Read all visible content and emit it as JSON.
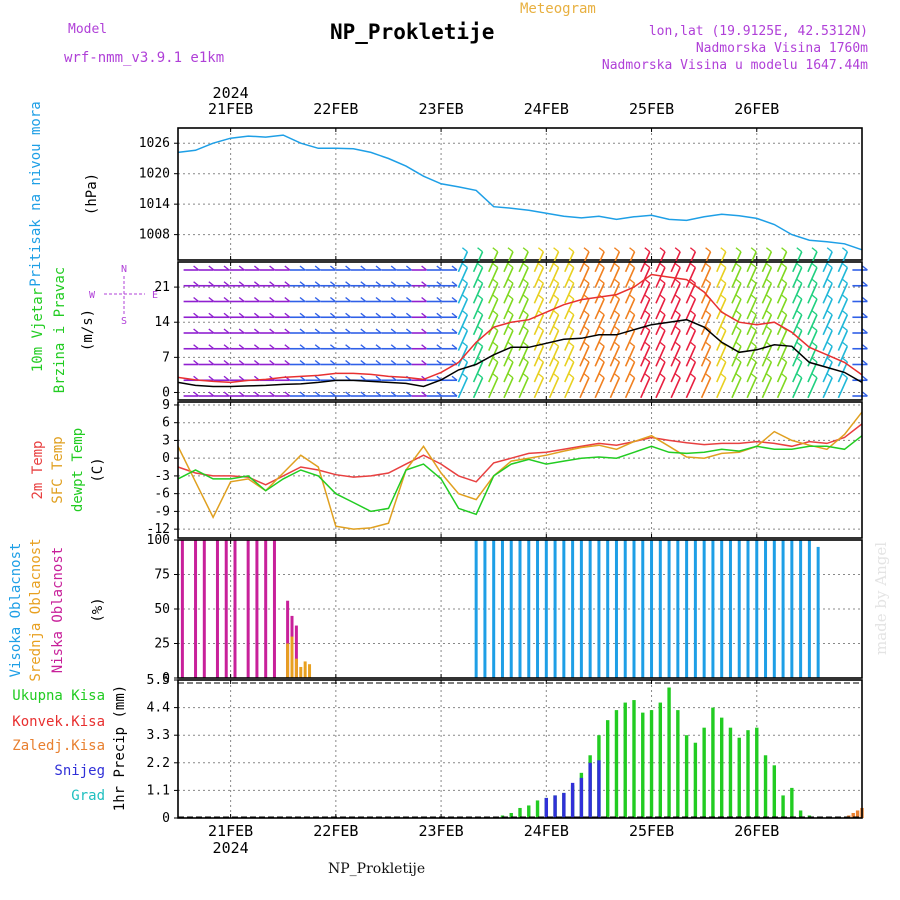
{
  "header": {
    "model_label": "Model",
    "model_name": "wrf-nmm_v3.9.1 e1km",
    "title": "NP_Prokletije",
    "meteogram": "Meteogram",
    "coords": "lon,lat (19.9125E, 42.5312N)",
    "elevation": "Nadmorska Visina 1760m",
    "model_elevation": "Nadmorska Visina u modelu 1647.44m"
  },
  "footer": {
    "station": "NP_Prokletije"
  },
  "watermark": "made by Angel",
  "colors": {
    "pressure": "#1e9fe6",
    "wind_speed": "#000000",
    "gust": "#e83030",
    "temp_2m": "#e84040",
    "temp_sfc": "#e0a020",
    "dewpoint": "#22cc22",
    "cloud_high": "#1e9fe6",
    "cloud_mid": "#e8a020",
    "cloud_low": "#c8209a",
    "precip_total": "#22cc22",
    "precip_conv": "#e83030",
    "precip_frozen": "#e88030",
    "precip_snow": "#3030d8",
    "precip_hail": "#20c0c0",
    "label_purple": "#b040d8"
  },
  "chart_data": {
    "type": "line",
    "x_axis": {
      "ticks": [
        "21FEB",
        "22FEB",
        "23FEB",
        "24FEB",
        "25FEB",
        "26FEB"
      ],
      "year": "2024",
      "range_hours": [
        -12,
        144
      ]
    },
    "panels": [
      {
        "name": "pressure",
        "ylabel_lines": [
          "Pritisak na nivou mora"
        ],
        "unit": "(hPa)",
        "ylim": [
          1003,
          1029
        ],
        "yticks": [
          1008,
          1014,
          1020,
          1026
        ],
        "series": [
          {
            "color_key": "pressure",
            "x": [
              -12,
              -8,
              -4,
              0,
              4,
              8,
              12,
              16,
              20,
              24,
              28,
              32,
              36,
              40,
              44,
              48,
              52,
              56,
              60,
              64,
              68,
              72,
              76,
              80,
              84,
              88,
              92,
              96,
              100,
              104,
              108,
              112,
              116,
              120,
              124,
              128,
              132,
              136,
              140,
              144
            ],
            "y": [
              1024.2,
              1024.6,
              1026.0,
              1027.0,
              1027.4,
              1027.2,
              1027.6,
              1026.0,
              1025.0,
              1025.0,
              1024.9,
              1024.2,
              1023.0,
              1021.5,
              1019.5,
              1018.0,
              1017.4,
              1016.7,
              1013.5,
              1013.2,
              1012.8,
              1012.2,
              1011.6,
              1011.3,
              1011.6,
              1011.0,
              1011.5,
              1011.8,
              1011.0,
              1010.8,
              1011.5,
              1012.0,
              1011.7,
              1011.2,
              1010.0,
              1008.0,
              1006.9,
              1006.6,
              1006.2,
              1005.0
            ]
          }
        ]
      },
      {
        "name": "wind",
        "ylabel_lines": [
          "10m Vjetar",
          "Brzina i Pravac"
        ],
        "unit": "(m/s)",
        "ylim": [
          -1.5,
          26
        ],
        "yticks": [
          0,
          7,
          14,
          21
        ],
        "compass": [
          "N",
          "W",
          "E",
          "S"
        ],
        "series": [
          {
            "color_key": "wind_speed",
            "x": [
              -12,
              -8,
              -4,
              0,
              4,
              8,
              12,
              16,
              20,
              24,
              28,
              32,
              36,
              40,
              44,
              48,
              52,
              56,
              60,
              64,
              68,
              72,
              76,
              80,
              84,
              88,
              92,
              96,
              100,
              104,
              108,
              112,
              116,
              120,
              124,
              128,
              132,
              136,
              140,
              144
            ],
            "y": [
              2.0,
              1.4,
              1.2,
              1.2,
              1.3,
              1.4,
              1.6,
              1.7,
              2.0,
              2.4,
              2.4,
              2.2,
              2.0,
              1.8,
              1.2,
              2.5,
              4.5,
              5.6,
              7.5,
              9.0,
              9.0,
              9.8,
              10.6,
              10.8,
              11.5,
              11.5,
              12.5,
              13.5,
              14.0,
              14.5,
              13.0,
              10.0,
              8.0,
              8.5,
              9.5,
              9.2,
              6.0,
              5.0,
              4.0,
              2.0
            ]
          },
          {
            "color_key": "gust",
            "x": [
              -12,
              -8,
              -4,
              0,
              4,
              8,
              12,
              16,
              20,
              24,
              28,
              32,
              36,
              40,
              44,
              48,
              52,
              56,
              60,
              64,
              68,
              72,
              76,
              80,
              84,
              88,
              92,
              96,
              100,
              104,
              108,
              112,
              116,
              120,
              124,
              128,
              132,
              136,
              140,
              144
            ],
            "y": [
              3.0,
              2.5,
              2.2,
              2.0,
              2.4,
              2.6,
              3.0,
              3.2,
              3.4,
              3.8,
              3.8,
              3.6,
              3.2,
              3.0,
              2.6,
              4.0,
              6.0,
              10.0,
              13.0,
              14.0,
              14.5,
              16.0,
              17.5,
              18.5,
              19.0,
              19.5,
              21.0,
              23.5,
              23.0,
              22.5,
              20.0,
              16.0,
              14.0,
              13.5,
              14.0,
              12.0,
              9.0,
              7.5,
              6.0,
              3.5
            ]
          }
        ]
      },
      {
        "name": "temperature",
        "ylabel_lines": [
          "2m Temp",
          "SFC Temp",
          "dewpt Temp"
        ],
        "unit": "(C)",
        "ylim": [
          -13.5,
          9.5
        ],
        "yticks": [
          -12,
          -9,
          -6,
          -3,
          0,
          3,
          6,
          9
        ],
        "series": [
          {
            "color_key": "temp_2m",
            "x": [
              -12,
              -8,
              -4,
              0,
              4,
              8,
              12,
              16,
              20,
              24,
              28,
              32,
              36,
              40,
              44,
              48,
              52,
              56,
              60,
              64,
              68,
              72,
              76,
              80,
              84,
              88,
              92,
              96,
              100,
              104,
              108,
              112,
              116,
              120,
              124,
              128,
              132,
              136,
              140,
              144
            ],
            "y": [
              -1.5,
              -2.5,
              -3.0,
              -3.0,
              -3.2,
              -4.5,
              -3.0,
              -1.5,
              -2.0,
              -2.8,
              -3.2,
              -3.0,
              -2.5,
              -1.0,
              0.5,
              -1.0,
              -3.0,
              -4.0,
              -0.8,
              0.0,
              0.8,
              1.0,
              1.5,
              2.0,
              2.5,
              2.2,
              2.8,
              3.5,
              3.0,
              2.6,
              2.3,
              2.5,
              2.5,
              2.8,
              2.5,
              2.0,
              2.8,
              2.5,
              3.5,
              5.8
            ]
          },
          {
            "color_key": "temp_sfc",
            "x": [
              -12,
              -8,
              -4,
              0,
              4,
              8,
              12,
              16,
              20,
              24,
              28,
              32,
              36,
              40,
              44,
              48,
              52,
              56,
              60,
              64,
              68,
              72,
              76,
              80,
              84,
              88,
              92,
              96,
              100,
              104,
              108,
              112,
              116,
              120,
              124,
              128,
              132,
              136,
              140,
              144
            ],
            "y": [
              2.0,
              -4.0,
              -10.0,
              -4.0,
              -3.5,
              -5.5,
              -2.5,
              0.5,
              -1.5,
              -11.5,
              -12.0,
              -11.8,
              -11.0,
              -2.0,
              2.0,
              -2.5,
              -6.0,
              -7.0,
              -3.0,
              -0.5,
              0.0,
              0.5,
              1.2,
              1.8,
              2.2,
              1.5,
              2.8,
              3.8,
              2.0,
              0.2,
              0.0,
              0.8,
              1.0,
              2.0,
              4.5,
              3.0,
              2.2,
              1.5,
              4.0,
              7.8
            ]
          },
          {
            "color_key": "dewpoint",
            "x": [
              -12,
              -8,
              -4,
              0,
              4,
              8,
              12,
              16,
              20,
              24,
              28,
              32,
              36,
              40,
              44,
              48,
              52,
              56,
              60,
              64,
              68,
              72,
              76,
              80,
              84,
              88,
              92,
              96,
              100,
              104,
              108,
              112,
              116,
              120,
              124,
              128,
              132,
              136,
              140,
              144
            ],
            "y": [
              -3.5,
              -2.0,
              -3.5,
              -3.5,
              -3.0,
              -5.5,
              -3.5,
              -2.0,
              -3.0,
              -6.0,
              -7.5,
              -9.0,
              -8.5,
              -2.0,
              -1.0,
              -3.5,
              -8.5,
              -9.5,
              -3.0,
              -1.0,
              -0.2,
              -1.0,
              -0.5,
              0.0,
              0.2,
              0.0,
              1.0,
              2.0,
              1.0,
              0.8,
              1.0,
              1.5,
              1.2,
              2.0,
              1.5,
              1.5,
              2.0,
              2.0,
              1.5,
              3.8
            ]
          }
        ]
      },
      {
        "name": "cloud_cover",
        "ylabel_lines": [
          "Visoka Oblacnost",
          "Srednja Oblacnost",
          "Niska Oblacnost"
        ],
        "unit": "(%)",
        "ylim": [
          0,
          100
        ],
        "yticks": [
          0,
          25,
          50,
          75,
          100
        ],
        "series": [
          {
            "color_key": "cloud_low",
            "x": [
              -11,
              -10,
              -9,
              -8,
              -7,
              -6,
              -5,
              -4,
              -3,
              -2,
              -1,
              0,
              1,
              2,
              3,
              4,
              5,
              6,
              7,
              8,
              9,
              10,
              11,
              12,
              13,
              14,
              15,
              16
            ],
            "y": [
              100,
              0,
              0,
              100,
              0,
              100,
              0,
              0,
              100,
              0,
              100,
              0,
              100,
              0,
              0,
              100,
              0,
              100,
              0,
              100,
              0,
              100,
              0,
              0,
              56,
              45,
              38,
              0
            ]
          },
          {
            "color_key": "cloud_mid",
            "x": [
              12,
              13,
              14,
              15,
              16,
              17,
              18
            ],
            "y": [
              0,
              25,
              30,
              14,
              8,
              12,
              10
            ]
          },
          {
            "color_key": "cloud_high",
            "x": [
              56,
              58,
              60,
              62,
              64,
              66,
              68,
              70,
              72,
              74,
              76,
              78,
              80,
              82,
              84,
              86,
              88,
              90,
              92,
              94,
              96,
              98,
              100,
              102,
              104,
              106,
              108,
              110,
              112,
              114,
              116,
              118,
              120,
              122,
              124,
              126,
              128,
              130,
              132,
              134,
              136,
              138,
              140,
              142,
              144
            ],
            "y": [
              100,
              100,
              100,
              100,
              100,
              100,
              100,
              100,
              100,
              100,
              100,
              100,
              100,
              100,
              100,
              100,
              100,
              100,
              100,
              100,
              100,
              100,
              100,
              100,
              100,
              100,
              100,
              100,
              100,
              100,
              100,
              100,
              100,
              100,
              100,
              100,
              100,
              100,
              100,
              95,
              0,
              0,
              0,
              0,
              0
            ]
          }
        ]
      },
      {
        "name": "precipitation",
        "ylabel_lines": [
          "1hr Precip (mm)"
        ],
        "unit": "(mm)",
        "ylim": [
          0,
          5.5
        ],
        "yticks": [
          0,
          1.1,
          2.2,
          3.3,
          4.4,
          5.5
        ],
        "legend_labels": [
          "Ukupna Kisa",
          "Konvek.Kisa",
          "Zaledj.Kisa",
          "Snijeg",
          "Grad"
        ],
        "series": [
          {
            "color_key": "precip_total",
            "x": [
              62,
              64,
              66,
              68,
              70,
              72,
              74,
              76,
              78,
              80,
              82,
              84,
              86,
              88,
              90,
              92,
              94,
              96,
              98,
              100,
              102,
              104,
              106,
              108,
              110,
              112,
              114,
              116,
              118,
              120,
              122,
              124,
              126,
              128,
              130,
              132
            ],
            "y": [
              0.1,
              0.2,
              0.4,
              0.5,
              0.7,
              0.8,
              0.9,
              1.0,
              1.3,
              1.8,
              2.5,
              3.3,
              3.9,
              4.3,
              4.6,
              4.7,
              4.2,
              4.3,
              4.6,
              5.2,
              4.3,
              3.3,
              3.0,
              3.6,
              4.4,
              4.0,
              3.6,
              3.2,
              3.5,
              3.6,
              2.5,
              2.1,
              0.9,
              1.2,
              0.3,
              0.1
            ]
          },
          {
            "color_key": "precip_snow",
            "x": [
              72,
              74,
              76,
              78,
              80,
              82,
              84
            ],
            "y": [
              0.8,
              0.9,
              1.0,
              1.4,
              1.6,
              2.2,
              2.3
            ]
          },
          {
            "color_key": "precip_frozen",
            "x": [
              141,
              142,
              143,
              144
            ],
            "y": [
              0.1,
              0.2,
              0.3,
              0.4
            ]
          }
        ]
      }
    ]
  }
}
